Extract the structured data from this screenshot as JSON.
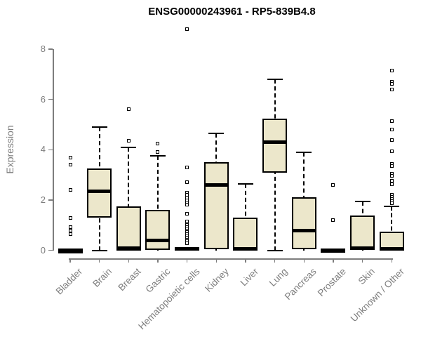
{
  "header": {
    "title": "ENSG00000243961 - RP5-839B4.8"
  },
  "chart_data": {
    "type": "boxplot",
    "title": "ENSG00000243961 - RP5-839B4.8",
    "xlabel": "",
    "ylabel": "Expression",
    "ylim": [
      0,
      8
    ],
    "yticks": [
      0,
      2,
      4,
      6,
      8
    ],
    "grid": false,
    "legend": "none",
    "colors": {
      "box_fill": "#ECE7CB",
      "axis": "#7D7D7D",
      "line": "#000000"
    },
    "categories": [
      "Bladder",
      "Brain",
      "Breast",
      "Gastric",
      "Hematopoietic cells",
      "Kidney",
      "Liver",
      "Lung",
      "Pancreas",
      "Prostate",
      "Skin",
      "Unknown / Other"
    ],
    "series": [
      {
        "name": "Bladder",
        "q1": 0,
        "median": 0,
        "q3": 0,
        "whisker_low": 0,
        "whisker_high": 0,
        "outliers": [
          3.7,
          3.4,
          2.4,
          1.3,
          0.93,
          0.8,
          0.65
        ]
      },
      {
        "name": "Brain",
        "q1": 1.3,
        "median": 2.35,
        "q3": 3.25,
        "whisker_low": 0,
        "whisker_high": 4.9,
        "outliers": []
      },
      {
        "name": "Breast",
        "q1": 0,
        "median": 0.08,
        "q3": 1.75,
        "whisker_low": 0,
        "whisker_high": 4.1,
        "outliers": [
          5.6,
          4.35
        ]
      },
      {
        "name": "Gastric",
        "q1": 0.03,
        "median": 0.4,
        "q3": 1.6,
        "whisker_low": 0,
        "whisker_high": 3.75,
        "outliers": [
          4.25,
          3.9
        ]
      },
      {
        "name": "Hematopoietic cells",
        "q1": 0,
        "median": 0.05,
        "q3": 0.12,
        "whisker_low": 0,
        "whisker_high": 0.12,
        "outliers": [
          8.8,
          3.3,
          2.7,
          2.3,
          2.2,
          2.1,
          2.0,
          1.9,
          1.82,
          1.45,
          1.15,
          1.07,
          1.0,
          0.93,
          0.86,
          0.79,
          0.72,
          0.65,
          0.58,
          0.5,
          0.43,
          0.36,
          0.28
        ]
      },
      {
        "name": "Kidney",
        "q1": 0.05,
        "median": 2.6,
        "q3": 3.5,
        "whisker_low": 0,
        "whisker_high": 4.65,
        "outliers": []
      },
      {
        "name": "Liver",
        "q1": 0,
        "median": 0.06,
        "q3": 1.3,
        "whisker_low": 0,
        "whisker_high": 2.65,
        "outliers": []
      },
      {
        "name": "Lung",
        "q1": 3.1,
        "median": 4.3,
        "q3": 5.25,
        "whisker_low": 0,
        "whisker_high": 6.8,
        "outliers": []
      },
      {
        "name": "Pancreas",
        "q1": 0.04,
        "median": 0.8,
        "q3": 2.1,
        "whisker_low": 0,
        "whisker_high": 3.9,
        "outliers": []
      },
      {
        "name": "Prostate",
        "q1": 0,
        "median": 0,
        "q3": 0.03,
        "whisker_low": 0,
        "whisker_high": 0.03,
        "outliers": [
          2.6,
          1.2
        ]
      },
      {
        "name": "Skin",
        "q1": 0.04,
        "median": 0.08,
        "q3": 1.4,
        "whisker_low": 0,
        "whisker_high": 1.95,
        "outliers": []
      },
      {
        "name": "Unknown / Other",
        "q1": 0,
        "median": 0.06,
        "q3": 0.75,
        "whisker_low": 0,
        "whisker_high": 1.75,
        "outliers": [
          7.15,
          6.7,
          6.62,
          6.4,
          5.15,
          4.8,
          4.4,
          3.95,
          3.45,
          3.35,
          3.05,
          2.95,
          2.78,
          2.62,
          2.2,
          2.12,
          2.04,
          1.96,
          1.88
        ]
      }
    ]
  }
}
